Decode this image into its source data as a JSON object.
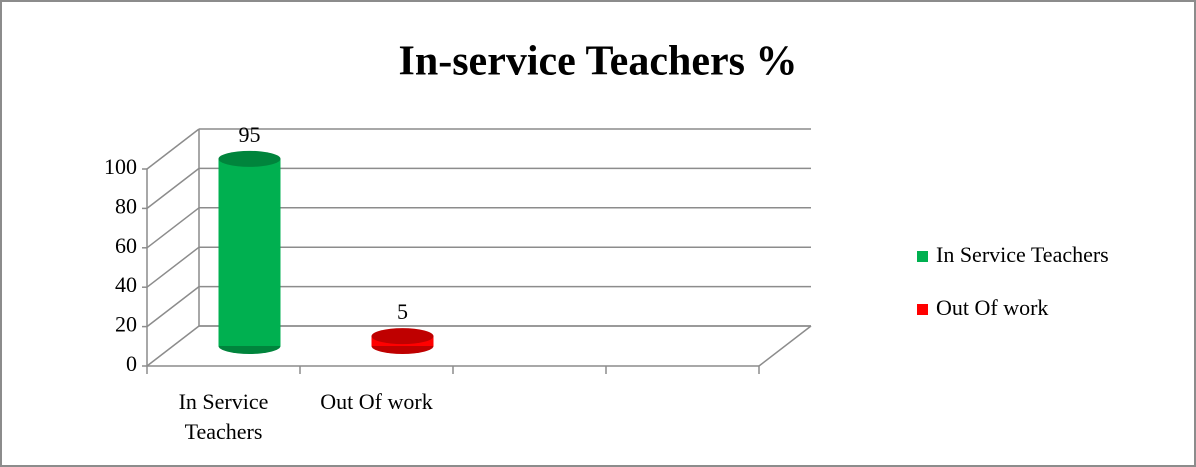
{
  "chart_data": {
    "type": "bar3d",
    "title": "In-service Teachers %",
    "categories": [
      "In Service Teachers",
      "Out Of work",
      null,
      null
    ],
    "series": [
      {
        "name": "In Service Teachers",
        "color": "#00b050",
        "values": [
          95,
          null,
          null,
          null
        ]
      },
      {
        "name": "Out Of work",
        "color": "#ff0000",
        "values": [
          null,
          5,
          null,
          null
        ]
      }
    ],
    "ylim": [
      0,
      100
    ],
    "yticks": [
      0,
      20,
      40,
      60,
      80,
      100
    ],
    "grid": true,
    "legend": "right"
  }
}
